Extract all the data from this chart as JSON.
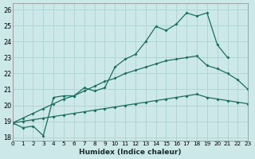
{
  "xlabel": "Humidex (Indice chaleur)",
  "bg_color": "#cce8e8",
  "grid_color": "#aacece",
  "line_color": "#1a6e5e",
  "xlim": [
    0,
    23
  ],
  "ylim": [
    17.8,
    26.4
  ],
  "xticks": [
    0,
    1,
    2,
    3,
    4,
    5,
    6,
    7,
    8,
    9,
    10,
    11,
    12,
    13,
    14,
    15,
    16,
    17,
    18,
    19,
    20,
    21,
    22,
    23
  ],
  "yticks": [
    18,
    19,
    20,
    21,
    22,
    23,
    24,
    25,
    26
  ],
  "line1_y": [
    18.9,
    18.6,
    18.7,
    18.1,
    20.5,
    20.6,
    20.6,
    21.1,
    20.9,
    21.1,
    22.4,
    22.9,
    23.2,
    24.0,
    24.95,
    24.7,
    25.1,
    25.8,
    25.6,
    25.8,
    23.8,
    23.0,
    null,
    null
  ],
  "line2_y": [
    18.9,
    19.2,
    19.5,
    19.8,
    20.1,
    20.4,
    20.6,
    20.9,
    21.2,
    21.5,
    21.7,
    22.0,
    22.2,
    22.4,
    22.6,
    22.8,
    22.9,
    23.0,
    23.1,
    22.5,
    22.3,
    22.0,
    21.6,
    21.0
  ],
  "line3_y": [
    18.9,
    19.0,
    19.1,
    19.2,
    19.3,
    19.4,
    19.5,
    19.6,
    19.7,
    19.8,
    19.9,
    20.0,
    20.1,
    20.2,
    20.3,
    20.4,
    20.5,
    20.6,
    20.7,
    20.5,
    20.4,
    20.3,
    20.2,
    20.1
  ]
}
